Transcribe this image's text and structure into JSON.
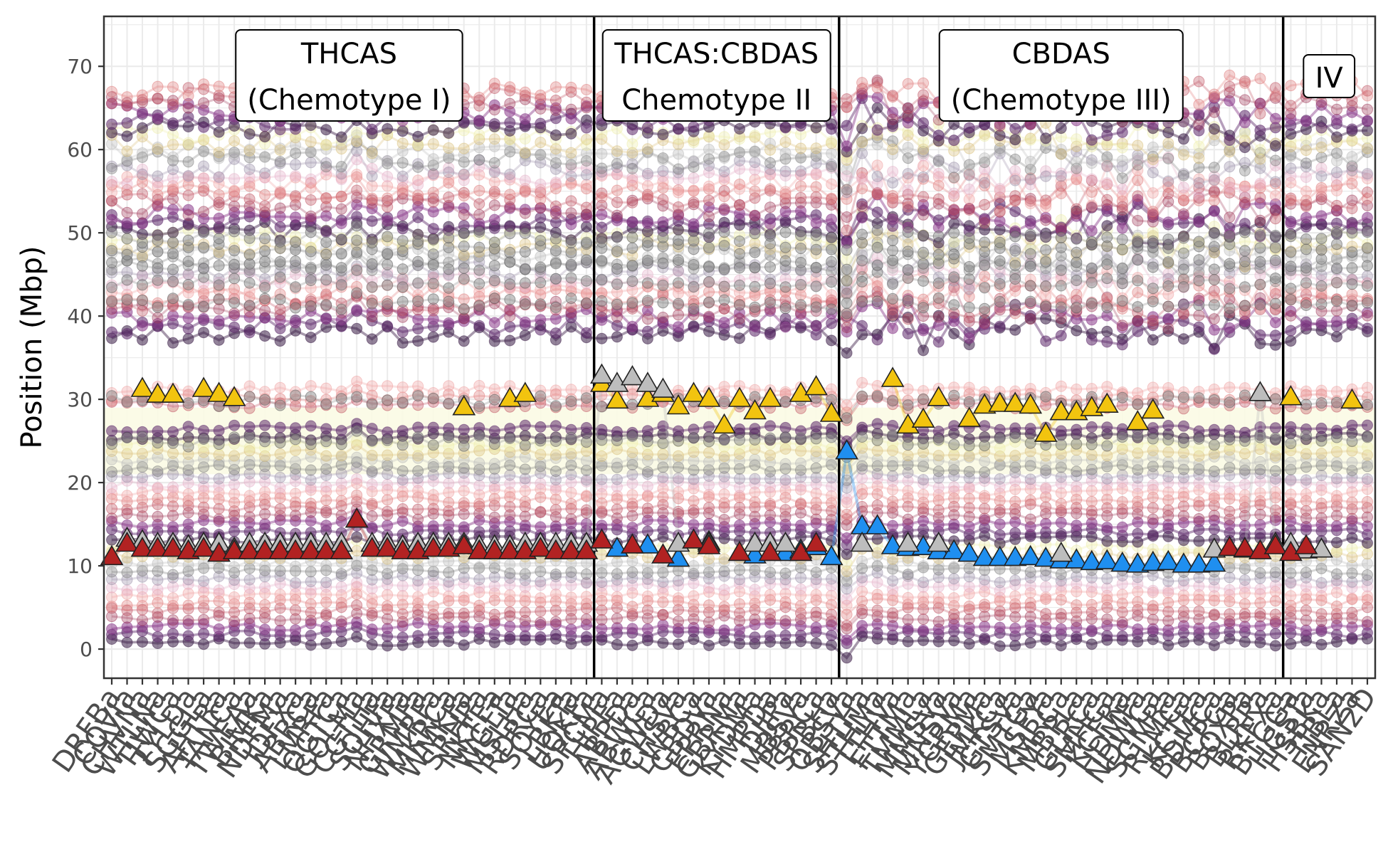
{
  "chart_data": {
    "type": "line",
    "ylabel": "Position (Mbp)",
    "xlabel": "",
    "ylim": [
      -3.5,
      76
    ],
    "y_ticks": [
      0,
      10,
      20,
      30,
      40,
      50,
      60,
      70
    ],
    "y_tick_labels": [
      "0",
      "10",
      "20",
      "30",
      "40",
      "50",
      "60",
      "70"
    ],
    "grid": true,
    "legend": "none",
    "categories": [
      "DRFBa",
      "COVIa",
      "CHVNa",
      "WTLNa",
      "TJWCa",
      "TYLDa",
      "SGGLa",
      "AHTRa",
      "TANCa",
      "TWEAa",
      "BIMKa",
      "NDFMa",
      "JDFXa",
      "ABRCa",
      "LMRFa",
      "QGTCa",
      "GOLMa",
      "CGTHa",
      "SOHFa",
      "NHXFa",
      "GRMFa",
      "WMRFa",
      "MKRCa",
      "WMKFa",
      "SRHPa",
      "NKTEa",
      "WGLTa",
      "MSLHa",
      "RDRCa",
      "SOYEa",
      "LBKTa",
      "UQKFa",
      "SPCMa",
      "HJPEa",
      "ABPDa",
      "ABWCa",
      "AGWDa",
      "CHSVa",
      "LWBCa",
      "CBDVa",
      "EPRNa",
      "GBRMa",
      "KYDMa",
      "HMPDa",
      "DJJPa",
      "MBSVa",
      "PBRCa",
      "SPBHa",
      "OBSVa",
      "SHTHa",
      "STHMa",
      "TTHVa",
      "FTTMa",
      "TMMLa",
      "MMSVa",
      "MNSVa",
      "YGRMa",
      "GEPMa",
      "JMKCa",
      "GTSVa",
      "SMTGa",
      "MSFYa",
      "KMRCa",
      "MBPLa",
      "GLRCa",
      "SMHCa",
      "KCFRa",
      "HDMFa",
      "NDWCa",
      "SGMRa",
      "RLMCa",
      "KCTEa",
      "BDMCa",
      "BCPGa",
      "BOXPa",
      "BLRPa",
      "RKFXa",
      "BTGGa",
      "HGSTa",
      "HSBKa",
      "TJBLa",
      "ENRZa",
      "SAN2D"
    ],
    "groups": [
      {
        "label_line1": "THCAS",
        "label_line2": "(Chemotype I)",
        "start": 0,
        "end": 31
      },
      {
        "label_line1": "THCAS:CBDAS",
        "label_line2": "Chemotype II",
        "start": 32,
        "end": 47
      },
      {
        "label_line1": "CBDAS",
        "label_line2": "(Chemotype III)",
        "start": 48,
        "end": 76
      },
      {
        "label_line1": "IV",
        "label_line2": "",
        "start": 77,
        "end": 82
      }
    ],
    "marker_colors": {
      "thcas": "#f2c40f",
      "cbdas": "#1f8ff0",
      "inactive": "#bdbdbd",
      "other": "#b22222"
    },
    "background_palette": [
      "#3b1d47",
      "#5e2a6b",
      "#8a3a8a",
      "#a03a5a",
      "#c0505f",
      "#e07a7a",
      "#f0a0a0",
      "#e6b0c8",
      "#9a8fa8",
      "#7a7a7a",
      "#b8b8b8",
      "#d9c07a",
      "#eeeeaa"
    ],
    "series": [
      {
        "name": "thcas",
        "values": [
          null,
          null,
          31.2,
          30.5,
          30.5,
          null,
          31.2,
          30.6,
          30.1,
          null,
          null,
          null,
          null,
          null,
          null,
          null,
          null,
          null,
          null,
          null,
          null,
          null,
          null,
          29,
          null,
          null,
          30,
          30.6,
          null,
          null,
          null,
          null,
          31.8,
          29.8,
          null,
          30,
          30.6,
          29.1,
          30.6,
          30,
          26.8,
          30,
          28.5,
          30,
          null,
          30.6,
          31.4,
          28.2,
          null,
          null,
          null,
          32.4,
          26.8,
          27.5,
          30.1,
          null,
          27.6,
          29.2,
          29.4,
          29.4,
          29.2,
          25.8,
          28.4,
          28.4,
          28.9,
          29.3,
          null,
          27.2,
          28.6,
          null,
          null,
          null,
          null,
          null,
          null,
          null,
          null,
          30.2,
          null,
          null,
          null,
          29.8,
          null
        ]
      },
      {
        "name": "cbdas",
        "values": [
          null,
          null,
          null,
          null,
          null,
          null,
          null,
          null,
          null,
          null,
          null,
          null,
          null,
          null,
          null,
          null,
          null,
          null,
          null,
          null,
          null,
          null,
          null,
          null,
          null,
          null,
          null,
          null,
          null,
          null,
          null,
          null,
          null,
          12,
          null,
          12.4,
          null,
          10.8,
          null,
          12.8,
          null,
          null,
          11.2,
          null,
          11.5,
          11.8,
          12.2,
          11,
          23.7,
          14.7,
          14.7,
          12.3,
          12.1,
          12.2,
          11.7,
          11.7,
          11.4,
          10.9,
          10.9,
          10.9,
          11,
          10.8,
          10.6,
          10.6,
          10.4,
          10.5,
          10.2,
          10.1,
          10.3,
          10.4,
          10.1,
          10.1,
          10.2,
          null,
          null,
          null,
          null,
          null,
          null,
          null,
          null,
          null,
          null
        ]
      },
      {
        "name": "inactive",
        "values": [
          null,
          13.2,
          12.9,
          12.6,
          12.6,
          12.3,
          12.6,
          12.6,
          12,
          12.6,
          12.6,
          12.6,
          12.6,
          12.6,
          12.6,
          12.6,
          15.5,
          12.6,
          12.6,
          12.3,
          12.6,
          12.6,
          12.6,
          12.6,
          12.3,
          12.3,
          12.3,
          12.6,
          12.6,
          12.6,
          12.6,
          12.6,
          32.8,
          31.8,
          32.6,
          31.8,
          31.1,
          12.6,
          null,
          12.6,
          null,
          null,
          12.6,
          12.6,
          12.6,
          null,
          null,
          null,
          null,
          12.6,
          null,
          null,
          12.6,
          null,
          12.6,
          null,
          null,
          null,
          null,
          null,
          null,
          null,
          11.4,
          null,
          null,
          null,
          null,
          null,
          null,
          null,
          null,
          null,
          11.9,
          12.1,
          11.9,
          30.7,
          12.6,
          12.6,
          11.8,
          11.9,
          null,
          null,
          null
        ]
      },
      {
        "name": "other",
        "values": [
          11,
          12.6,
          12,
          12,
          12,
          11.7,
          12,
          11.4,
          11.7,
          11.7,
          11.7,
          11.7,
          11.7,
          11.7,
          11.7,
          11.7,
          15.5,
          12,
          12,
          11.7,
          11.7,
          12,
          12,
          12.3,
          11.7,
          11.7,
          11.7,
          11.7,
          12,
          11.7,
          11.7,
          11.7,
          13,
          null,
          12.4,
          null,
          11.2,
          null,
          13,
          12.3,
          null,
          11.5,
          null,
          11.5,
          null,
          11.5,
          12.6,
          null,
          null,
          null,
          null,
          null,
          null,
          null,
          null,
          null,
          null,
          null,
          null,
          null,
          null,
          null,
          null,
          null,
          null,
          null,
          null,
          null,
          null,
          null,
          null,
          null,
          null,
          12.1,
          12,
          11.7,
          12.3,
          11.5,
          12.3,
          null,
          null,
          null,
          null
        ]
      }
    ]
  }
}
